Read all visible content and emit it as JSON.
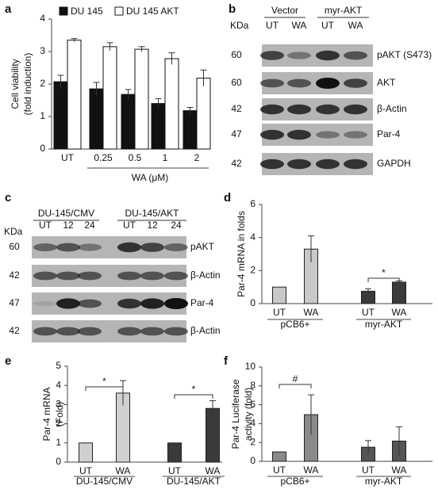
{
  "panel_labels": [
    "a",
    "b",
    "c",
    "d",
    "e",
    "f"
  ],
  "chart_data": [
    {
      "type": "bar",
      "ylabel": [
        "Cell viability",
        "(fold induction)"
      ],
      "xlabel": "WA (μM)",
      "categories": [
        "UT",
        "0.25",
        "0.5",
        "1",
        "2"
      ],
      "series": [
        {
          "name": "DU 145",
          "color": "#111111",
          "values": [
            2.07,
            1.85,
            1.68,
            1.4,
            1.18
          ],
          "errors": [
            0.2,
            0.2,
            0.15,
            0.15,
            0.1
          ]
        },
        {
          "name": "DU 145 AKT",
          "color": "#ffffff",
          "values": [
            3.35,
            3.15,
            3.07,
            2.78,
            2.18
          ],
          "errors": [
            0.05,
            0.12,
            0.08,
            0.18,
            0.25
          ]
        }
      ],
      "ylim": [
        0,
        4
      ],
      "yticks": [
        0,
        1,
        2,
        3,
        4
      ]
    },
    {
      "type": "bar",
      "ylabel": [
        "Par-4 mRNA in folds"
      ],
      "categories": [
        "UT",
        "WA",
        "UT",
        "WA"
      ],
      "groups": [
        "pCB6+",
        "myr-AKT"
      ],
      "values": [
        1,
        3.3,
        0.75,
        1.3
      ],
      "errors": [
        0,
        0.8,
        0.15,
        0.08
      ],
      "colors": [
        "#c8c8c8",
        "#c8c8c8",
        "#3a3a3a",
        "#3a3a3a"
      ],
      "annotations": [
        "*"
      ],
      "ylim": [
        0,
        6
      ],
      "yticks": [
        0,
        2,
        4,
        6
      ]
    },
    {
      "type": "bar",
      "ylabel": [
        "Par-4 mRNA",
        "(Fold)"
      ],
      "categories": [
        "UT",
        "WA",
        "UT",
        "WA"
      ],
      "groups": [
        "DU-145/CMV",
        "DU-145/AKT"
      ],
      "values": [
        1,
        3.6,
        1,
        2.8
      ],
      "errors": [
        0,
        0.65,
        0,
        0.4
      ],
      "colors": [
        "#d0d0d0",
        "#d0d0d0",
        "#3a3a3a",
        "#3a3a3a"
      ],
      "annotations": [
        "*",
        "*"
      ],
      "ylim": [
        0,
        5
      ],
      "yticks": [
        0,
        1,
        2,
        3,
        4,
        5
      ]
    },
    {
      "type": "bar",
      "ylabel": [
        "Par-4 Luciferase",
        "activity (fold)"
      ],
      "categories": [
        "UT",
        "WA",
        "UT",
        "WA"
      ],
      "groups": [
        "pCB6+",
        "myr-AKT"
      ],
      "values": [
        1,
        4.95,
        1.5,
        2.15
      ],
      "errors": [
        0,
        2.1,
        0.7,
        1.5
      ],
      "colors": [
        "#8a8a8a",
        "#8a8a8a",
        "#555555",
        "#555555"
      ],
      "annotations": [
        "#"
      ],
      "ylim": [
        0,
        10
      ],
      "yticks": [
        0,
        2,
        4,
        6,
        8,
        10
      ]
    }
  ],
  "blots": [
    {
      "unit": "KDa",
      "groups": [
        "Vector",
        "myr-AKT"
      ],
      "lanes": [
        "UT",
        "WA",
        "UT",
        "WA"
      ],
      "rows": [
        {
          "kda": 60,
          "label": "pAKT (S473)"
        },
        {
          "kda": 60,
          "label": "AKT"
        },
        {
          "kda": 42,
          "label": "β-Actin"
        },
        {
          "kda": 47,
          "label": "Par-4"
        },
        {
          "kda": 42,
          "label": "GAPDH"
        }
      ]
    },
    {
      "unit": "KDa",
      "groups": [
        "DU-145/CMV",
        "DU-145/AKT"
      ],
      "lanes": [
        "UT",
        12,
        24,
        "UT",
        12,
        24
      ],
      "rows": [
        {
          "kda": 60,
          "label": "pAKT"
        },
        {
          "kda": 42,
          "label": "β-Actin"
        },
        {
          "kda": 47,
          "label": "Par-4"
        },
        {
          "kda": 42,
          "label": "β-Actin"
        }
      ]
    }
  ]
}
